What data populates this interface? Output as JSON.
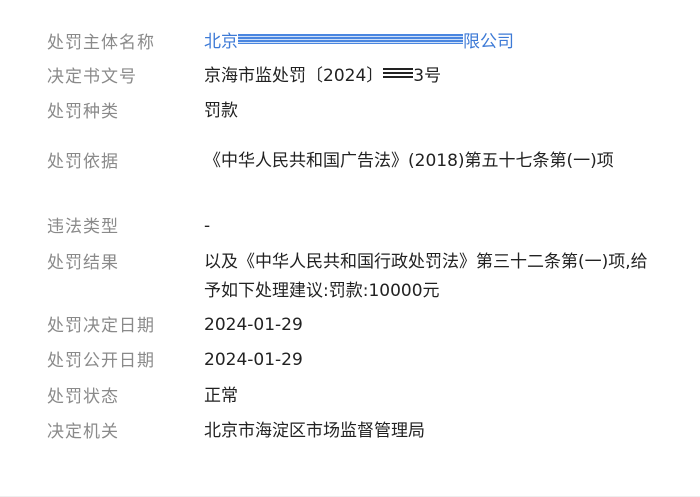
{
  "rows": [
    {
      "label": "处罚主体名称",
      "value_prefix": "北京",
      "value_suffix": "限公司"
    },
    {
      "label": "决定书文号",
      "value_prefix": "京海市监处罚〔2024〕",
      "value_suffix": "3号"
    },
    {
      "label": "处罚种类",
      "value": "罚款"
    },
    {
      "label": "处罚依据",
      "value": "《中华人民共和国广告法》(2018)第五十七条第(一)项"
    },
    {
      "label": "违法类型",
      "value": "-"
    },
    {
      "label": "处罚结果",
      "value": "以及《中华人民共和国行政处罚法》第三十二条第(一)项,给予如下处理建议:罚款:10000元"
    },
    {
      "label": "处罚决定日期",
      "value": "2024-01-29"
    },
    {
      "label": "处罚公开日期",
      "value": "2024-01-29"
    },
    {
      "label": "处罚状态",
      "value": "正常"
    },
    {
      "label": "决定机关",
      "value": "北京市海淀区市场监督管理局"
    }
  ],
  "colors": {
    "link": "#3d7ad6",
    "label": "#8a8a8a",
    "text": "#222222"
  }
}
